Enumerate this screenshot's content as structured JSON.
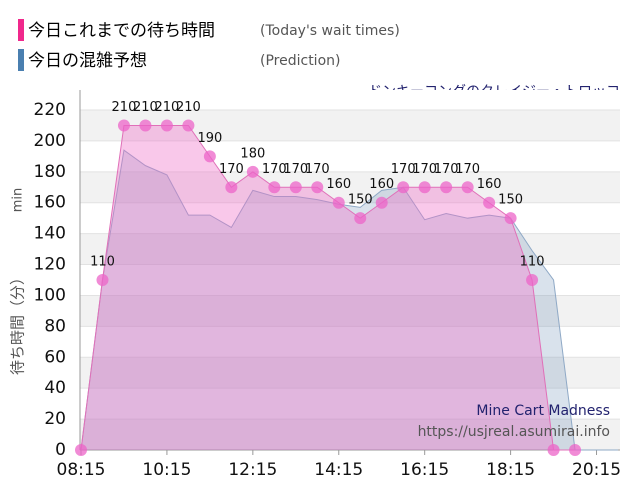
{
  "chart_data": {
    "type": "area",
    "legend_items": [
      {
        "name": "今日これまでの待ち時間",
        "note": "(Today's wait times)",
        "color": "#f0288c"
      },
      {
        "name": "今日の混雑予想",
        "note": "(Prediction)",
        "color": "#4a7fb0"
      }
    ],
    "subtitle": "ドンキーコングのクレイジー・トロッコ",
    "ylabel": "待ち時間（分）",
    "ylabel_unit": "min",
    "annotations": [
      "Mine Cart Madness",
      "https://usjreal.asumirai.info"
    ],
    "x": [
      "08:15",
      "08:45",
      "09:15",
      "09:45",
      "10:15",
      "10:45",
      "11:15",
      "11:45",
      "12:15",
      "12:45",
      "13:15",
      "13:45",
      "14:15",
      "14:45",
      "15:15",
      "15:45",
      "16:15",
      "16:45",
      "17:15",
      "17:45",
      "18:15",
      "18:45",
      "19:15",
      "19:45",
      "20:15",
      "20:45"
    ],
    "xlim": [
      "08:15",
      "20:45"
    ],
    "xticks": [
      "08:15",
      "10:15",
      "12:15",
      "14:15",
      "16:15",
      "18:15",
      "20:15"
    ],
    "ylim": [
      0,
      220
    ],
    "yticks": [
      0,
      20,
      40,
      60,
      80,
      100,
      120,
      140,
      160,
      180,
      200,
      220
    ],
    "grid": true,
    "series": [
      {
        "name": "今日の混雑予想",
        "color": "#8fa9c6",
        "fill": "rgba(120,150,185,0.28)",
        "values": [
          0,
          110,
          194,
          184,
          178,
          152,
          152,
          144,
          168,
          164,
          164,
          162,
          159,
          157,
          168,
          170,
          149,
          153,
          150,
          152,
          150,
          129,
          110,
          0,
          0,
          0
        ]
      },
      {
        "name": "今日これまでの待ち時間",
        "color": "#e070b8",
        "fill": "rgba(240,110,200,0.38)",
        "markers": true,
        "values": [
          0,
          110,
          210,
          210,
          210,
          210,
          190,
          170,
          180,
          170,
          170,
          170,
          160,
          150,
          160,
          170,
          170,
          170,
          170,
          160,
          150,
          110,
          0,
          0,
          null,
          null
        ],
        "value_labels": [
          null,
          "110",
          "210",
          "210",
          "210",
          "210",
          "190",
          "170",
          "180",
          "170",
          "170",
          "170",
          "160",
          "150",
          "160",
          "170",
          "170",
          "170",
          "170",
          "160",
          "150",
          "110",
          null,
          null,
          null,
          null
        ]
      }
    ]
  }
}
